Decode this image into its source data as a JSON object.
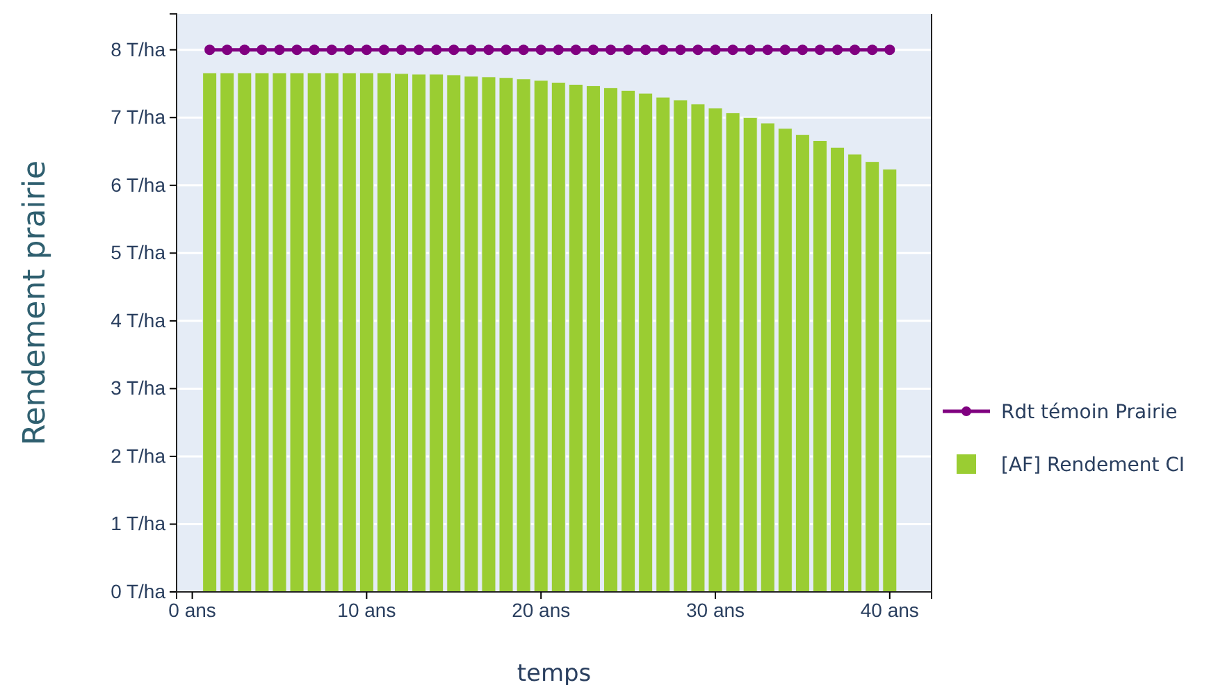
{
  "chart_data": {
    "type": "bar",
    "xlabel": "temps",
    "ylabel": "Rendement prairie",
    "x": [
      1,
      2,
      3,
      4,
      5,
      6,
      7,
      8,
      9,
      10,
      11,
      12,
      13,
      14,
      15,
      16,
      17,
      18,
      19,
      20,
      21,
      22,
      23,
      24,
      25,
      26,
      27,
      28,
      29,
      30,
      31,
      32,
      33,
      34,
      35,
      36,
      37,
      38,
      39,
      40
    ],
    "series": [
      {
        "name": "Rdt témoin Prairie",
        "type": "line",
        "color": "#800080",
        "marker": "circle",
        "values": [
          8,
          8,
          8,
          8,
          8,
          8,
          8,
          8,
          8,
          8,
          8,
          8,
          8,
          8,
          8,
          8,
          8,
          8,
          8,
          8,
          8,
          8,
          8,
          8,
          8,
          8,
          8,
          8,
          8,
          8,
          8,
          8,
          8,
          8,
          8,
          8,
          8,
          8,
          8,
          8
        ]
      },
      {
        "name": "[AF] Rendement CI",
        "color": "#9acd32",
        "values": [
          7.66,
          7.66,
          7.66,
          7.66,
          7.66,
          7.66,
          7.66,
          7.66,
          7.66,
          7.66,
          7.66,
          7.65,
          7.64,
          7.64,
          7.63,
          7.61,
          7.6,
          7.59,
          7.57,
          7.55,
          7.52,
          7.49,
          7.47,
          7.44,
          7.4,
          7.36,
          7.3,
          7.26,
          7.2,
          7.14,
          7.07,
          7.0,
          6.92,
          6.84,
          6.75,
          6.66,
          6.56,
          6.46,
          6.35,
          6.24
        ]
      }
    ],
    "xlim": [
      -0.9,
      42.4
    ],
    "xticks": [
      {
        "value": 0,
        "label": "0 ans"
      },
      {
        "value": 10,
        "label": "10 ans"
      },
      {
        "value": 20,
        "label": "20 ans"
      },
      {
        "value": 30,
        "label": "30 ans"
      },
      {
        "value": 40,
        "label": "40 ans"
      }
    ],
    "ylim": [
      0,
      8.53
    ],
    "yticks": [
      {
        "value": 0,
        "label": "0 T/ha"
      },
      {
        "value": 1,
        "label": "1 T/ha"
      },
      {
        "value": 2,
        "label": "2 T/ha"
      },
      {
        "value": 3,
        "label": "3 T/ha"
      },
      {
        "value": 4,
        "label": "4 T/ha"
      },
      {
        "value": 5,
        "label": "5 T/ha"
      },
      {
        "value": 6,
        "label": "6 T/ha"
      },
      {
        "value": 7,
        "label": "7 T/ha"
      },
      {
        "value": 8,
        "label": "8 T/ha"
      }
    ],
    "grid": "y",
    "legend": "right"
  }
}
